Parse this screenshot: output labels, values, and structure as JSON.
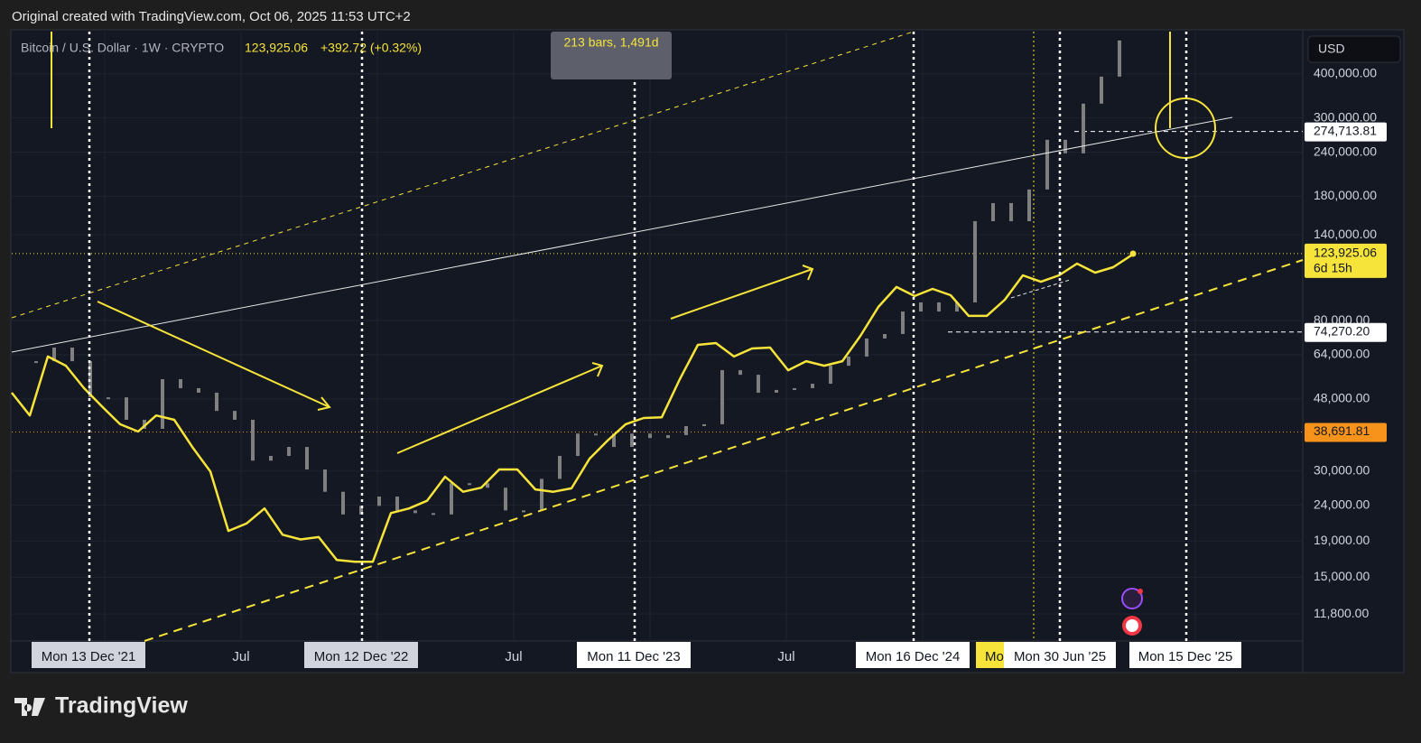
{
  "header": {
    "caption": "Original created with TradingView.com, Oct 06, 2025 11:53 UTC+2"
  },
  "symbol": {
    "name": "Bitcoin / U.S. Dollar · 1W · CRYPTO",
    "price": "123,925.06",
    "change": "+392.72 (+0.32%)"
  },
  "measure": "213 bars, 1,491d",
  "currency": "USD",
  "footer": {
    "brand": "TradingView"
  },
  "chart_data": {
    "type": "line",
    "log_scale": true,
    "grid": true,
    "ylim": [
      9900,
      527000
    ],
    "yticks": [
      {
        "value": 11800,
        "label": "11,800.00"
      },
      {
        "value": 15000,
        "label": "15,000.00"
      },
      {
        "value": 19000,
        "label": "19,000.00"
      },
      {
        "value": 24000,
        "label": "24,000.00"
      },
      {
        "value": 30000,
        "label": "30,000.00"
      },
      {
        "value": 48000,
        "label": "48,000.00"
      },
      {
        "value": 64000,
        "label": "64,000.00"
      },
      {
        "value": 80000,
        "label": "80,000.00"
      },
      {
        "value": 140000,
        "label": "140,000.00"
      },
      {
        "value": 180000,
        "label": "180,000.00"
      },
      {
        "value": 240000,
        "label": "240,000.00"
      },
      {
        "value": 300000,
        "label": "300,000.00"
      },
      {
        "value": 400000,
        "label": "400,000.00"
      }
    ],
    "price_labels": [
      {
        "value": 274713.81,
        "label": "274,713.81",
        "color": "#ffffff"
      },
      {
        "value": 123925.06,
        "label": "123,925.06",
        "countdown": "6d 15h",
        "color": "#f7e43a"
      },
      {
        "value": 74270.2,
        "label": "74,270.20",
        "color": "#ffffff"
      },
      {
        "value": 38691.81,
        "label": "38,691.81",
        "color": "#f7931a"
      }
    ],
    "x_labels": [
      "Mon 13 Dec '21",
      "Jul",
      "Mon 12 Dec '22",
      "Jul",
      "Mon 11 Dec '23",
      "Jul",
      "Mon 16 Dec '24",
      "Mo",
      "Mon 30 Jun '25",
      "Mon 15 Dec '25"
    ],
    "series": [
      {
        "type": "bar",
        "color": "#808080",
        "values": [
          61400,
          67100,
          61400,
          48500,
          48500,
          41900,
          39500,
          54600,
          51500,
          50000,
          44400,
          41900,
          32100,
          33100,
          35100,
          30300,
          26200,
          22600,
          23900,
          25400,
          23200,
          22800,
          22600,
          27700,
          27700,
          26900,
          23200,
          23200,
          28500,
          33100,
          38300,
          38300,
          35100,
          38300,
          37200,
          37900,
          40200,
          40700,
          57900,
          56200,
          50000,
          50900,
          51500,
          53000,
          59600,
          63300,
          71200,
          73300,
          84900,
          90100,
          84900,
          90100,
          153000,
          172200,
          153000,
          188200,
          260200,
          238200,
          329400,
          392900,
          497400
        ]
      },
      {
        "type": "line",
        "color": "#f7e43a",
        "values": [
          50000,
          43100,
          63300,
          59600,
          51500,
          45700,
          40700,
          38800,
          43100,
          41900,
          35100,
          29900,
          20300,
          21300,
          23500,
          19800,
          19200,
          19500,
          16800,
          16600,
          16600,
          22800,
          23500,
          24700,
          28900,
          26200,
          26900,
          30300,
          30300,
          26600,
          26200,
          26800,
          32500,
          36600,
          40700,
          42400,
          42600,
          54600,
          68300,
          69100,
          63300,
          66700,
          67100,
          57900,
          61400,
          59600,
          61400,
          72400,
          87500,
          99600,
          93900,
          98400,
          94400,
          82500,
          82500,
          91700,
          107500,
          103100,
          107500,
          116000,
          109400,
          113300,
          122400
        ]
      }
    ]
  }
}
